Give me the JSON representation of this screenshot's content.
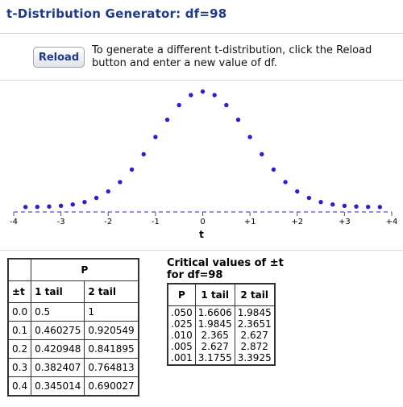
{
  "title": "t-Distribution Generator: df=98",
  "reload": {
    "button_label": "Reload",
    "instructions": "To generate a different t-distribution, click the Reload button and enter a new value of df."
  },
  "chart_data": {
    "type": "scatter",
    "xlabel": "t",
    "xlim": [
      -4,
      4
    ],
    "ylim": [
      0,
      0.4
    ],
    "x_ticks": [
      "-4",
      "-3",
      "-2",
      "-1",
      "0",
      "+1",
      "+2",
      "+3",
      "+4"
    ],
    "points_x": [
      -3.75,
      -3.5,
      -3.25,
      -3.0,
      -2.75,
      -2.5,
      -2.25,
      -2.0,
      -1.75,
      -1.5,
      -1.25,
      -1.0,
      -0.75,
      -0.5,
      -0.25,
      0.0,
      0.25,
      0.5,
      0.75,
      1.0,
      1.25,
      1.5,
      1.75,
      2.0,
      2.25,
      2.5,
      2.75,
      3.0,
      3.25,
      3.5,
      3.75
    ],
    "points_y": [
      0.0004,
      0.0009,
      0.0021,
      0.0045,
      0.0091,
      0.0176,
      0.0317,
      0.0541,
      0.0864,
      0.1295,
      0.1823,
      0.2417,
      0.3011,
      0.3516,
      0.3861,
      0.3984,
      0.3861,
      0.3516,
      0.3011,
      0.2417,
      0.1823,
      0.1295,
      0.0864,
      0.0541,
      0.0317,
      0.0176,
      0.0091,
      0.0045,
      0.0021,
      0.0009,
      0.0004
    ],
    "point_color": "#2a1fd1"
  },
  "p_table": {
    "header_group": "P",
    "headers": [
      "±t",
      "1 tail",
      "2 tail"
    ],
    "rows": [
      [
        "0.0",
        "0.5",
        "1"
      ],
      [
        "0.1",
        "0.460275",
        "0.920549"
      ],
      [
        "0.2",
        "0.420948",
        "0.841895"
      ],
      [
        "0.3",
        "0.382407",
        "0.764813"
      ],
      [
        "0.4",
        "0.345014",
        "0.690027"
      ]
    ]
  },
  "critical": {
    "title_line1": "Critical values of ±t",
    "title_line2": "for df=98",
    "headers": [
      "P",
      "1 tail",
      "2 tail"
    ],
    "p_values": [
      ".050",
      ".025",
      ".010",
      ".005",
      ".001"
    ],
    "one_tail": [
      "1.6606",
      "1.9845",
      "2.365",
      "2.627",
      "3.1755"
    ],
    "two_tail": [
      "1.9845",
      "2.3651",
      "2.627",
      "2.872",
      "3.3925"
    ]
  }
}
